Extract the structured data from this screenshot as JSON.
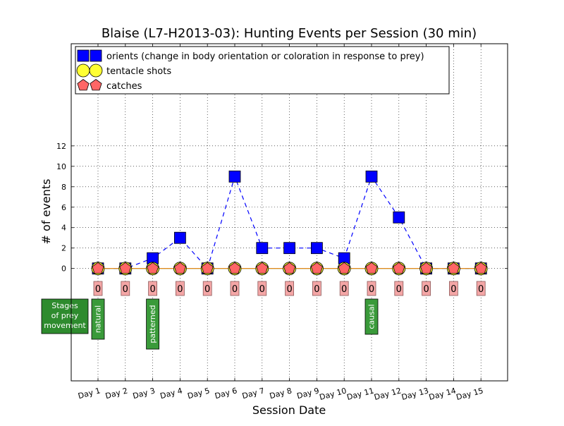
{
  "chart_data": {
    "type": "line",
    "title": "Blaise (L7-H2013-03): Hunting Events per Session (30 min)",
    "xlabel": "Session Date",
    "ylabel": "# of events",
    "categories": [
      "Day 1",
      "Day 2",
      "Day 3",
      "Day 4",
      "Day 5",
      "Day 6",
      "Day 7",
      "Day 8",
      "Day 9",
      "Day 10",
      "Day 11",
      "Day 12",
      "Day 13",
      "Day 14",
      "Day 15"
    ],
    "y_ticks": [
      0,
      2,
      4,
      6,
      8,
      10,
      12
    ],
    "ylim": [
      -11,
      22
    ],
    "grid": true,
    "legend_position": "top-left",
    "series": [
      {
        "name": "orients (change in body orientation or coloration in response to prey)",
        "marker": "square",
        "color": "#0000ff",
        "line": "dashed",
        "values": [
          0,
          0,
          1,
          3,
          0,
          9,
          2,
          2,
          2,
          1,
          9,
          5,
          0,
          0,
          0
        ]
      },
      {
        "name": "tentacle shots",
        "marker": "circle",
        "color": "#ffff33",
        "line": "solid",
        "line_color": "#00bfbf",
        "values": [
          0,
          0,
          0,
          0,
          0,
          0,
          0,
          0,
          0,
          0,
          0,
          0,
          0,
          0,
          0
        ]
      },
      {
        "name": "catches",
        "marker": "pentagon",
        "color": "#ff6666",
        "line": "solid",
        "line_color": "#ff8000",
        "values": [
          0,
          0,
          0,
          0,
          0,
          0,
          0,
          0,
          0,
          0,
          0,
          0,
          0,
          0,
          0
        ]
      }
    ],
    "count_labels": [
      "0",
      "0",
      "0",
      "0",
      "0",
      "0",
      "0",
      "0",
      "0",
      "0",
      "0",
      "0",
      "0",
      "0",
      "0"
    ],
    "stage_box_label": "Stages\nof prey\nmovement",
    "stage_annotations": [
      {
        "day_index": 0,
        "label": "natural"
      },
      {
        "day_index": 2,
        "label": "patterned"
      },
      {
        "day_index": 10,
        "label": "causal"
      }
    ]
  }
}
